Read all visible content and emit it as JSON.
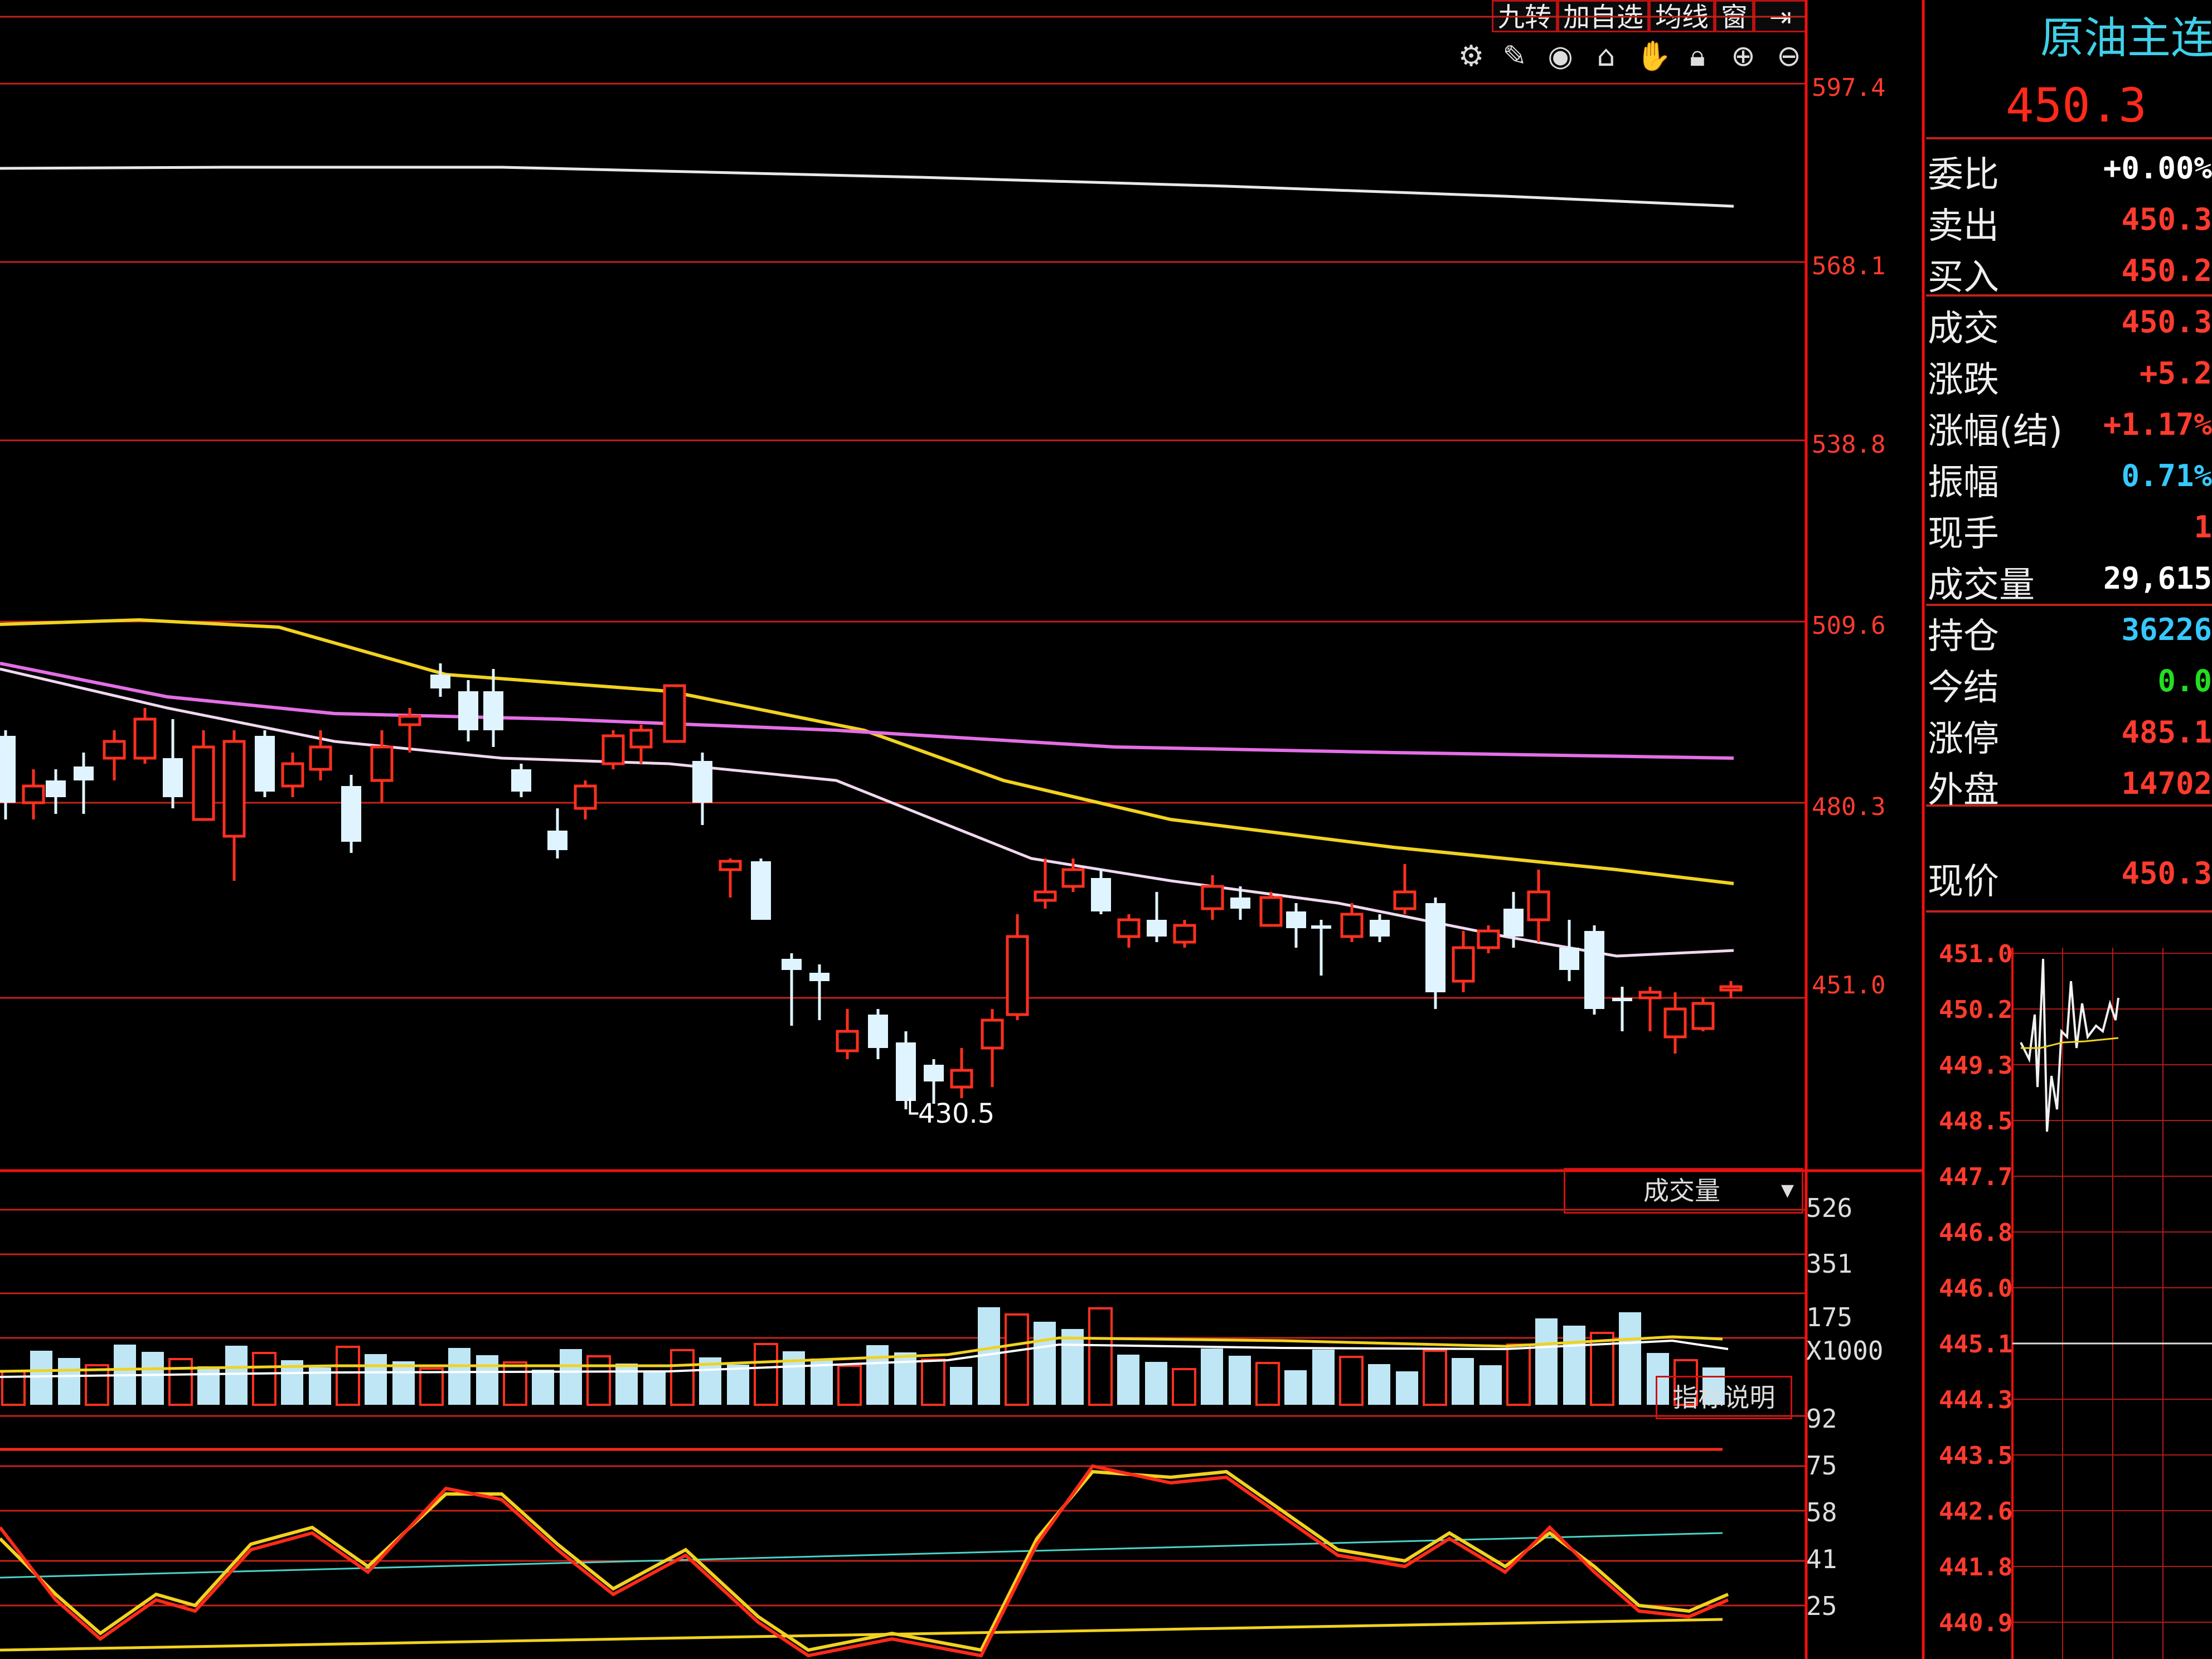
{
  "toolbar": {
    "buttons": [
      "九转",
      "加自选",
      "均线",
      "窗"
    ],
    "icons": [
      "gear-icon",
      "pen-icon",
      "eye-icon",
      "basket-icon",
      "hand-icon",
      "lock-icon",
      "zoom-in-icon",
      "zoom-out-icon",
      "exit-icon"
    ]
  },
  "main_chart": {
    "price_axis": [
      "597.4",
      "568.1",
      "538.8",
      "509.6",
      "480.3",
      "451.0"
    ],
    "low_annotation": "430.5"
  },
  "volume_panel": {
    "indicator": "成交量",
    "axis": [
      "526",
      "351",
      "175"
    ],
    "unit": "X1000"
  },
  "oscillator_panel": {
    "help_button": "指标说明",
    "axis": [
      "92",
      "75",
      "58",
      "41",
      "25"
    ]
  },
  "quote": {
    "symbol_name": "原油主连",
    "last_price": "450.3",
    "rows": [
      {
        "label": "委比",
        "value": "+0.00%",
        "color": "#ffffff"
      },
      {
        "label": "卖出",
        "value": "450.3",
        "color": "#ff3b2f"
      },
      {
        "label": "买入",
        "value": "450.2",
        "color": "#ff3b2f"
      },
      {
        "label": "成交",
        "value": "450.3",
        "color": "#ff3b2f"
      },
      {
        "label": "涨跌",
        "value": "+5.2",
        "color": "#ff3b2f"
      },
      {
        "label": "涨幅(结)",
        "value": "+1.17%",
        "color": "#ff3b2f"
      },
      {
        "label": "振幅",
        "value": "0.71%",
        "color": "#37c8ff"
      },
      {
        "label": "现手",
        "value": "1",
        "color": "#ff3b2f"
      },
      {
        "label": "成交量",
        "value": "29,615",
        "color": "#ffffff"
      },
      {
        "label": "持仓",
        "value": "36226",
        "color": "#37c8ff"
      },
      {
        "label": "今结",
        "value": "0.0",
        "color": "#22dd22"
      },
      {
        "label": "涨停",
        "value": "485.1",
        "color": "#ff3b2f"
      },
      {
        "label": "外盘",
        "value": "14702",
        "color": "#ff3b2f"
      }
    ],
    "current_label": "现价",
    "current_value": "450.3"
  },
  "mini_chart": {
    "axis": [
      "451.0",
      "450.2",
      "449.3",
      "448.5",
      "447.7",
      "446.8",
      "446.0",
      "445.1",
      "444.3",
      "443.5",
      "442.6",
      "441.8",
      "440.9"
    ]
  }
}
